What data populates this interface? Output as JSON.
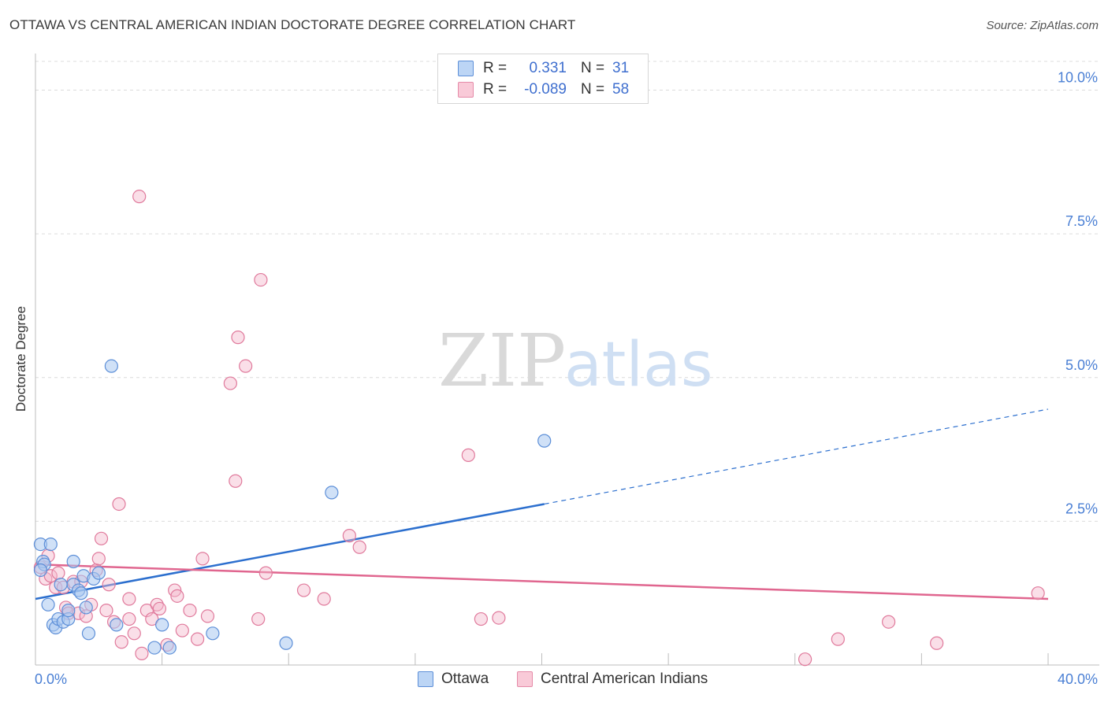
{
  "title": "OTTAWA VS CENTRAL AMERICAN INDIAN DOCTORATE DEGREE CORRELATION CHART",
  "source": "Source: ZipAtlas.com",
  "watermark": {
    "zip": "ZIP",
    "atlas": "atlas"
  },
  "legend": {
    "ottawa": {
      "r_label": "R =",
      "r_value": "0.331",
      "n_label": "N =",
      "n_value": "31"
    },
    "central": {
      "r_label": "R =",
      "r_value": "-0.089",
      "n_label": "N =",
      "n_value": "58"
    }
  },
  "colors": {
    "ottawa_fill": "#a9c8f0",
    "ottawa_stroke": "#5d8fd8",
    "ottawa_line": "#2c6fce",
    "central_fill": "#f5b8cb",
    "central_stroke": "#e07a9c",
    "central_line": "#e0668f",
    "grid": "#dcdcdc",
    "tick": "#4a7fd4"
  },
  "chart_data": {
    "type": "scatter",
    "title": "OTTAWA VS CENTRAL AMERICAN INDIAN DOCTORATE DEGREE CORRELATION CHART",
    "xlabel": "",
    "ylabel": "Doctorate Degree",
    "xlim": [
      0,
      40
    ],
    "ylim": [
      0,
      10.5
    ],
    "x_tick_labels": [
      "0.0%",
      "40.0%"
    ],
    "y_ticks": [
      2.5,
      5.0,
      7.5,
      10.0
    ],
    "y_tick_labels": [
      "2.5%",
      "5.0%",
      "7.5%",
      "10.0%"
    ],
    "series": [
      {
        "name": "Ottawa",
        "points": [
          [
            0.2,
            2.1
          ],
          [
            0.3,
            1.8
          ],
          [
            0.35,
            1.75
          ],
          [
            0.5,
            1.05
          ],
          [
            0.6,
            2.1
          ],
          [
            0.7,
            0.7
          ],
          [
            0.8,
            0.65
          ],
          [
            0.9,
            0.8
          ],
          [
            1.0,
            1.4
          ],
          [
            1.1,
            0.75
          ],
          [
            1.3,
            0.8
          ],
          [
            1.3,
            0.95
          ],
          [
            1.5,
            1.4
          ],
          [
            1.5,
            1.8
          ],
          [
            1.7,
            1.3
          ],
          [
            1.8,
            1.25
          ],
          [
            1.9,
            1.55
          ],
          [
            2.0,
            1.0
          ],
          [
            2.1,
            0.55
          ],
          [
            2.3,
            1.5
          ],
          [
            2.5,
            1.6
          ],
          [
            3.0,
            5.2
          ],
          [
            3.2,
            0.7
          ],
          [
            4.7,
            0.3
          ],
          [
            5.0,
            0.7
          ],
          [
            5.3,
            0.3
          ],
          [
            7.0,
            0.55
          ],
          [
            9.9,
            0.38
          ],
          [
            11.7,
            3.0
          ],
          [
            20.1,
            3.9
          ],
          [
            0.2,
            1.65
          ]
        ],
        "trend": {
          "x0": 0.0,
          "y0": 1.15,
          "x1": 20.1,
          "y1": 2.8,
          "dash_to_x": 40.0,
          "dash_to_y": 4.45
        }
      },
      {
        "name": "Central American Indians",
        "points": [
          [
            0.2,
            1.7
          ],
          [
            0.4,
            1.5
          ],
          [
            0.5,
            1.9
          ],
          [
            0.6,
            1.55
          ],
          [
            0.8,
            1.35
          ],
          [
            0.9,
            1.6
          ],
          [
            1.1,
            1.35
          ],
          [
            1.2,
            1.0
          ],
          [
            1.3,
            0.9
          ],
          [
            1.5,
            1.45
          ],
          [
            1.7,
            0.9
          ],
          [
            1.8,
            1.45
          ],
          [
            2.0,
            0.85
          ],
          [
            2.2,
            1.05
          ],
          [
            2.4,
            1.65
          ],
          [
            2.5,
            1.85
          ],
          [
            2.6,
            2.2
          ],
          [
            2.8,
            0.95
          ],
          [
            2.9,
            1.4
          ],
          [
            3.1,
            0.75
          ],
          [
            3.3,
            2.8
          ],
          [
            3.4,
            0.4
          ],
          [
            3.7,
            1.15
          ],
          [
            3.7,
            0.8
          ],
          [
            3.9,
            0.55
          ],
          [
            4.1,
            8.15
          ],
          [
            4.2,
            0.2
          ],
          [
            4.4,
            0.95
          ],
          [
            4.6,
            0.8
          ],
          [
            4.8,
            1.05
          ],
          [
            4.9,
            0.98
          ],
          [
            5.2,
            0.35
          ],
          [
            5.5,
            1.3
          ],
          [
            5.6,
            1.2
          ],
          [
            5.8,
            0.6
          ],
          [
            6.1,
            0.95
          ],
          [
            6.4,
            0.45
          ],
          [
            6.6,
            1.85
          ],
          [
            6.8,
            0.85
          ],
          [
            7.7,
            4.9
          ],
          [
            7.9,
            3.2
          ],
          [
            8.0,
            5.7
          ],
          [
            8.3,
            5.2
          ],
          [
            8.8,
            0.8
          ],
          [
            8.9,
            6.7
          ],
          [
            9.1,
            1.6
          ],
          [
            10.6,
            1.3
          ],
          [
            11.4,
            1.15
          ],
          [
            12.4,
            2.25
          ],
          [
            12.8,
            2.05
          ],
          [
            17.1,
            3.65
          ],
          [
            17.6,
            0.8
          ],
          [
            18.3,
            0.82
          ],
          [
            30.4,
            0.1
          ],
          [
            31.7,
            0.45
          ],
          [
            33.7,
            0.75
          ],
          [
            35.6,
            0.38
          ],
          [
            39.6,
            1.25
          ]
        ],
        "trend": {
          "x0": 0.0,
          "y0": 1.75,
          "x1": 40.0,
          "y1": 1.15
        }
      }
    ]
  },
  "bottom_legend": {
    "ottawa": "Ottawa",
    "central": "Central American Indians"
  }
}
